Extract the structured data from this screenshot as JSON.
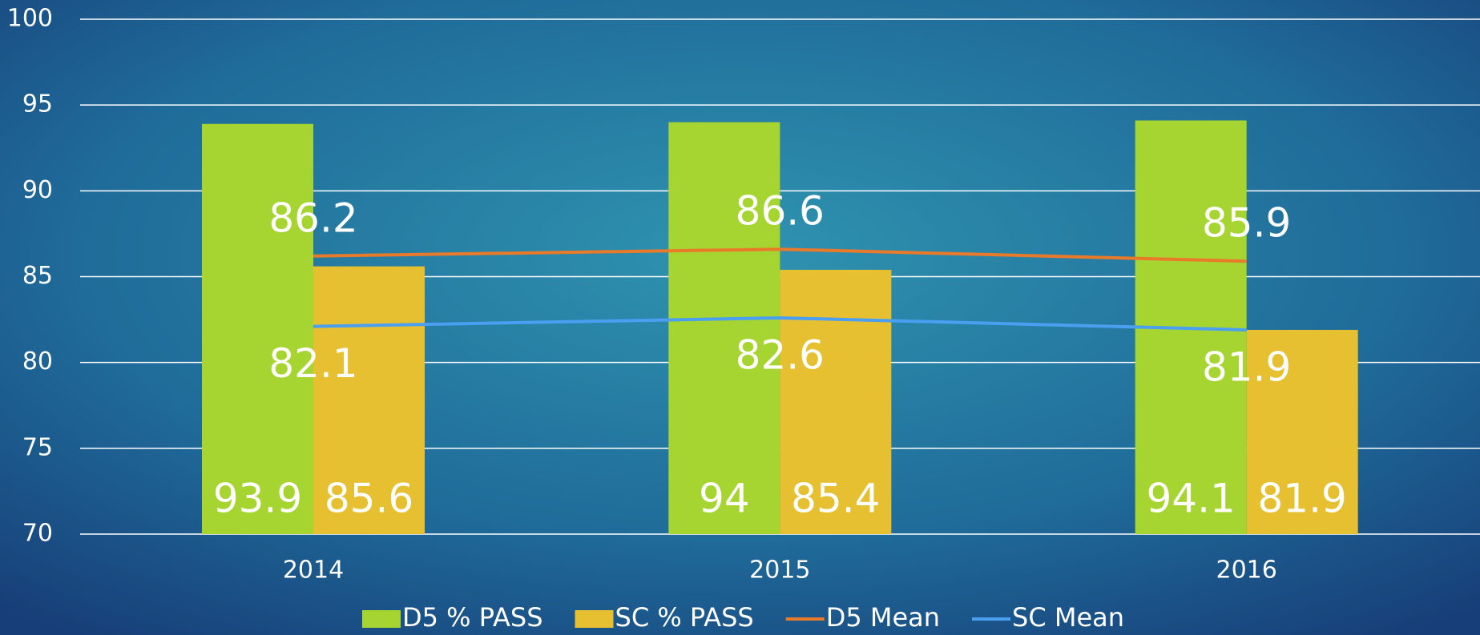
{
  "chart_data": {
    "type": "bar_line",
    "categories": [
      "2014",
      "2015",
      "2016"
    ],
    "series": [
      {
        "name": "D5 % PASS",
        "type": "bar",
        "color": "#a6d430",
        "values": [
          93.9,
          94,
          94.1
        ]
      },
      {
        "name": "SC % PASS",
        "type": "bar",
        "color": "#e6c030",
        "values": [
          85.6,
          85.4,
          81.9
        ]
      },
      {
        "name": "D5 Mean",
        "type": "line",
        "color": "#e87a2a",
        "values": [
          86.2,
          86.6,
          85.9
        ]
      },
      {
        "name": "SC Mean",
        "type": "line",
        "color": "#4a9ff0",
        "values": [
          82.1,
          82.6,
          81.9
        ]
      }
    ],
    "ylim": [
      70,
      100
    ],
    "yticks": [
      70,
      75,
      80,
      85,
      90,
      95,
      100
    ],
    "grid": true,
    "legend": "bottom"
  }
}
